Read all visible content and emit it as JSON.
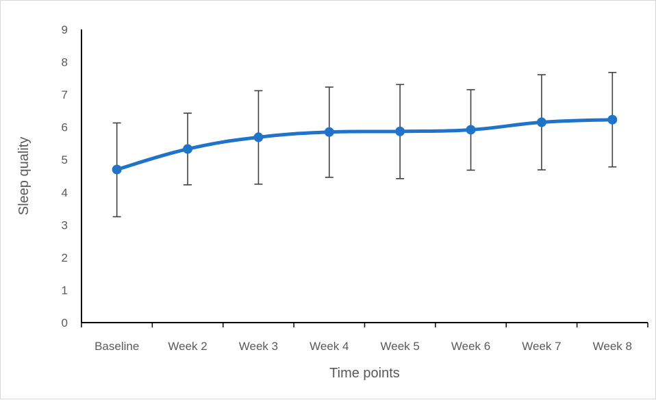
{
  "chart_data": {
    "type": "line",
    "title": "",
    "xlabel": "Time points",
    "ylabel": "Sleep quality",
    "categories": [
      "Baseline",
      "Week 2",
      "Week 3",
      "Week 4",
      "Week 5",
      "Week 6",
      "Week 7",
      "Week 8"
    ],
    "series": [
      {
        "values": [
          4.7,
          5.33,
          5.69,
          5.85,
          5.87,
          5.92,
          6.15,
          6.23
        ],
        "error_high": [
          6.13,
          6.43,
          7.12,
          7.23,
          7.31,
          7.15,
          7.61,
          7.68
        ],
        "error_low": [
          3.25,
          4.23,
          4.25,
          4.46,
          4.42,
          4.68,
          4.69,
          4.78
        ],
        "color": "#1f73c8"
      }
    ],
    "ylim": [
      0,
      9
    ],
    "yticks": [
      0,
      1,
      2,
      3,
      4,
      5,
      6,
      7,
      8,
      9
    ],
    "grid": false,
    "legend": "none",
    "error_bar_color": "#404040",
    "axis_color": "#000000"
  }
}
